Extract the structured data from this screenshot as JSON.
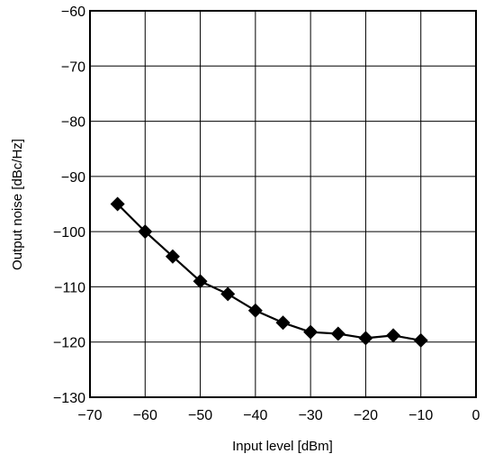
{
  "chart_data": {
    "type": "line",
    "xlabel": "Input level [dBm]",
    "ylabel": "Output noise [dBc/Hz]",
    "xlim": [
      -70,
      0
    ],
    "ylim": [
      -130,
      -60
    ],
    "x_ticks": [
      -70,
      -60,
      -50,
      -40,
      -30,
      -20,
      -10,
      0
    ],
    "y_ticks": [
      -60,
      -70,
      -80,
      -90,
      -100,
      -110,
      -120,
      -130
    ],
    "x_tick_labels": [
      "−70",
      "−60",
      "−50",
      "−40",
      "−30",
      "−20",
      "−10",
      "0"
    ],
    "y_tick_labels": [
      "−60",
      "−70",
      "−80",
      "−90",
      "−100",
      "−110",
      "−120",
      "−130"
    ],
    "grid": true,
    "marker": "diamond",
    "series": [
      {
        "x": [
          -65,
          -60,
          -55,
          -50,
          -45,
          -40,
          -35,
          -30,
          -25,
          -20,
          -15,
          -10
        ],
        "y": [
          -95,
          -100,
          -104.5,
          -109,
          -111.3,
          -114.3,
          -116.5,
          -118.2,
          -118.5,
          -119.3,
          -118.8,
          -119.7
        ]
      }
    ],
    "colors": {
      "line": "#000000",
      "marker": "#000000"
    }
  }
}
